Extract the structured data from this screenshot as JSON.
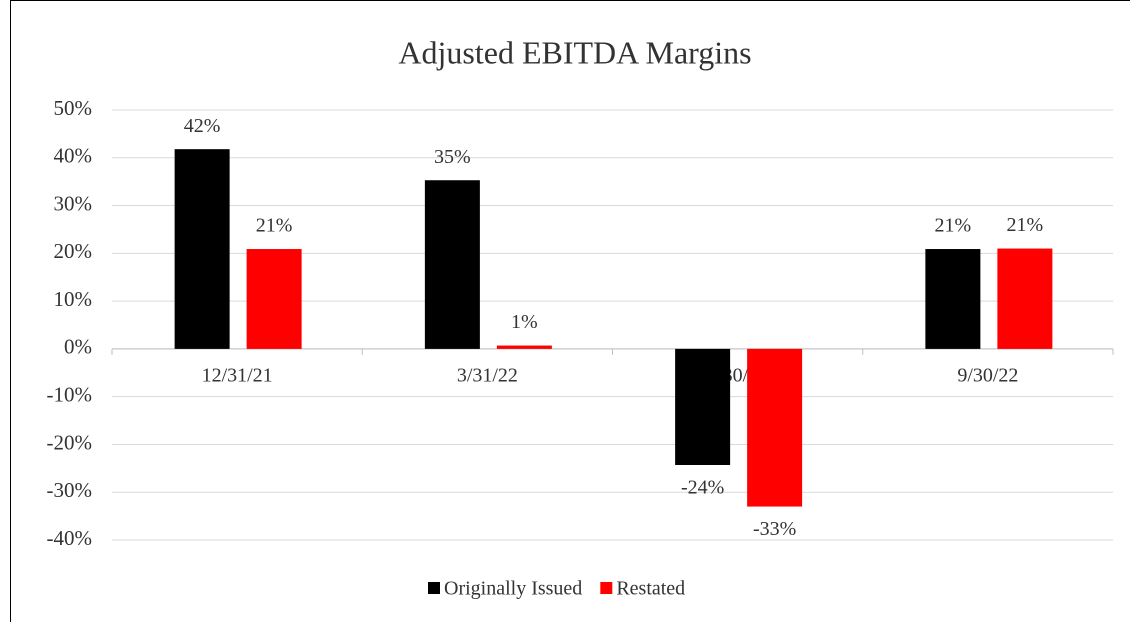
{
  "chart_data": {
    "type": "bar",
    "title": "Adjusted EBITDA Margins",
    "categories": [
      "12/31/21",
      "3/31/22",
      "6/30/22",
      "9/30/22"
    ],
    "series": [
      {
        "name": "Originally Issued",
        "color": "#000000",
        "values": [
          41.8,
          35.3,
          -24.3,
          20.9
        ],
        "value_labels": [
          "42%",
          "35%",
          "-24%",
          "21%"
        ]
      },
      {
        "name": "Restated",
        "color": "#ff0000",
        "values": [
          20.9,
          0.7,
          -33.0,
          21.0
        ],
        "value_labels": [
          "21%",
          "1%",
          "-33%",
          "21%"
        ]
      }
    ],
    "ylim": [
      -40,
      50
    ],
    "yticks": [
      {
        "value": -40,
        "label": "-40%"
      },
      {
        "value": -30,
        "label": "-30%"
      },
      {
        "value": -20,
        "label": "-20%"
      },
      {
        "value": -10,
        "label": "-10%"
      },
      {
        "value": 0,
        "label": "0%"
      },
      {
        "value": 10,
        "label": "10%"
      },
      {
        "value": 20,
        "label": "20%"
      },
      {
        "value": 30,
        "label": "30%"
      },
      {
        "value": 40,
        "label": "40%"
      },
      {
        "value": 50,
        "label": "50%"
      }
    ],
    "grid": true,
    "legend": "bottom"
  }
}
